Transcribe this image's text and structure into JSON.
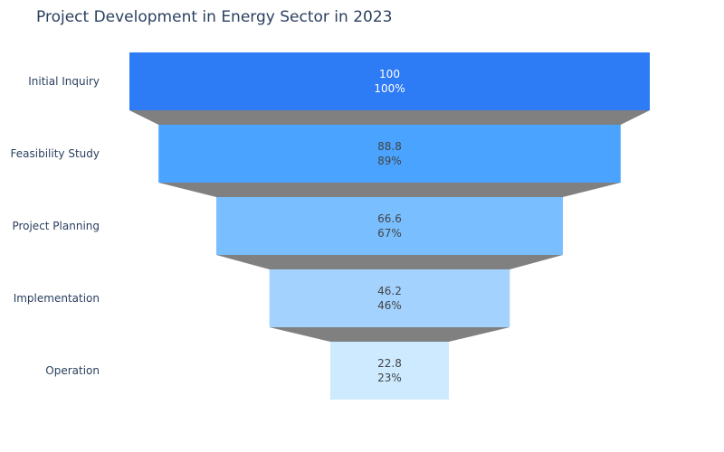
{
  "chart_data": {
    "type": "funnel",
    "title": "Project Development in Energy Sector in 2023",
    "categories": [
      "Initial Inquiry",
      "Feasibility Study",
      "Project Planning",
      "Implementation",
      "Operation"
    ],
    "values": [
      100,
      88.8,
      66.6,
      46.2,
      22.8
    ],
    "percent_labels": [
      "100%",
      "89%",
      "67%",
      "46%",
      "23%"
    ],
    "value_labels": [
      "100",
      "88.8",
      "66.6",
      "46.2",
      "22.8"
    ],
    "colors": [
      "#2e7bf6",
      "#4aa3ff",
      "#79bfff",
      "#a3d2ff",
      "#cdeaff"
    ],
    "label_colors": [
      "#ffffff",
      "#444444",
      "#444444",
      "#444444",
      "#444444"
    ],
    "connector_color": "#808080"
  }
}
